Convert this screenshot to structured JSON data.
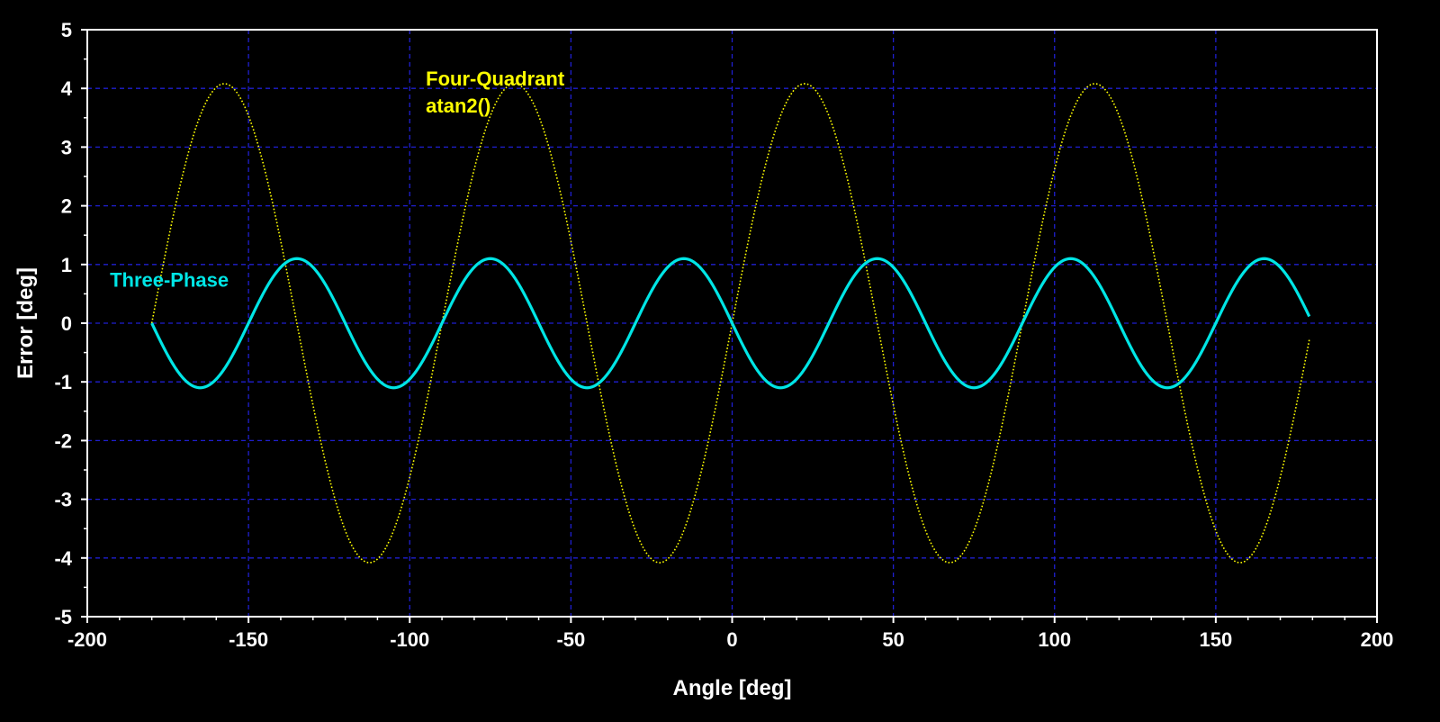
{
  "chart_data": {
    "type": "line",
    "title": "",
    "xlabel": "Angle [deg]",
    "ylabel": "Error [deg]",
    "xlim": [
      -200,
      200
    ],
    "ylim": [
      -5,
      5
    ],
    "x_ticks": [
      "-200",
      "-150",
      "-100",
      "-50",
      "0",
      "50",
      "100",
      "150",
      "200"
    ],
    "y_ticks": [
      "5",
      "4",
      "3",
      "2",
      "1",
      "0",
      "-1",
      "-2",
      "-3",
      "-4",
      "-5"
    ],
    "grid": true,
    "legend": "none",
    "background": "#000000",
    "colors": {
      "axes": "#ffffff",
      "grid": "#1f1fd0"
    },
    "series": [
      {
        "name": "Four-Quadrant atan2()",
        "label_lines": [
          "Four-Quadrant",
          "atan2()"
        ],
        "color": "#ffff00",
        "style": "dotted",
        "amplitude": 4.08,
        "cycles_per_rev": 4,
        "phase_deg": 0,
        "x_range": [
          -180,
          179
        ]
      },
      {
        "name": "Three-Phase",
        "label_lines": [
          "Three-Phase"
        ],
        "color": "#00e5e5",
        "style": "solid",
        "amplitude": 1.1,
        "cycles_per_rev": 6,
        "phase_deg": 180,
        "x_range": [
          -180,
          179
        ]
      }
    ]
  }
}
